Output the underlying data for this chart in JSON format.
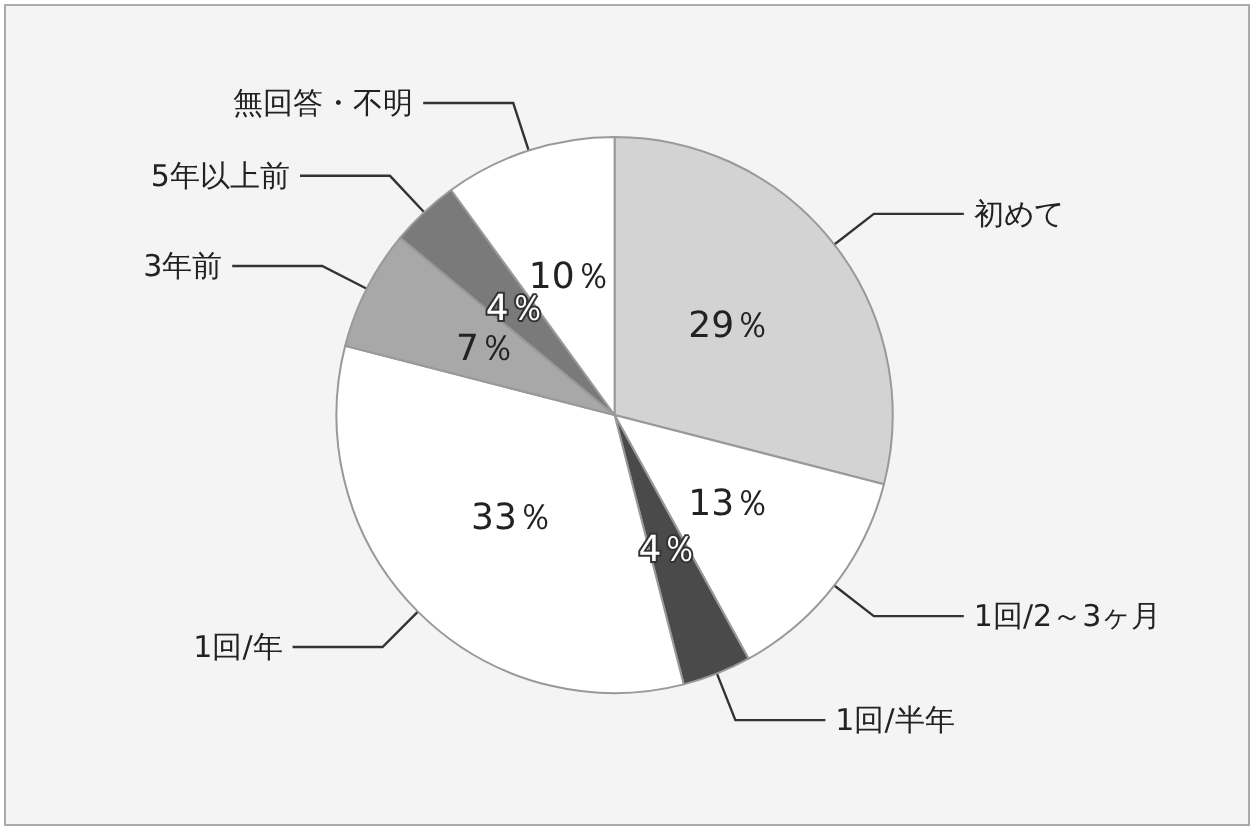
{
  "chart_data": {
    "type": "pie",
    "categories": [
      "初めて",
      "1回/2～3ヶ月",
      "1回/半年",
      "1回/年",
      "3年前",
      "5年以上前",
      "無回答・不明"
    ],
    "values": [
      29,
      13,
      4,
      33,
      7,
      4,
      10
    ],
    "colors": [
      "#d3d3d3",
      "#ffffff",
      "#4a4a4a",
      "#ffffff",
      "#a8a8a8",
      "#7a7a7a",
      "#ffffff"
    ],
    "value_labels": [
      "29％",
      "13％",
      "4％",
      "33％",
      "7％",
      "4％",
      "10％"
    ],
    "legend": false
  }
}
